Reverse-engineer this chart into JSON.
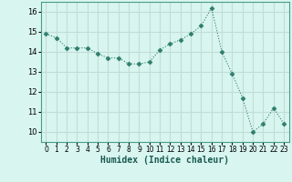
{
  "x": [
    0,
    1,
    2,
    3,
    4,
    5,
    6,
    7,
    8,
    9,
    10,
    11,
    12,
    13,
    14,
    15,
    16,
    17,
    18,
    19,
    20,
    21,
    22,
    23
  ],
  "y": [
    14.9,
    14.7,
    14.2,
    14.2,
    14.2,
    13.9,
    13.7,
    13.7,
    13.4,
    13.4,
    13.5,
    14.1,
    14.4,
    14.6,
    14.9,
    15.3,
    16.2,
    14.0,
    12.9,
    11.7,
    10.0,
    10.4,
    11.2,
    10.4
  ],
  "line_color": "#2e7d6e",
  "marker": "D",
  "marker_size": 2.5,
  "bg_color": "#d8f5ef",
  "grid_color": "#c0ddd8",
  "xlabel": "Humidex (Indice chaleur)",
  "xlim": [
    -0.5,
    23.5
  ],
  "ylim": [
    9.5,
    16.5
  ],
  "yticks": [
    10,
    11,
    12,
    13,
    14,
    15,
    16
  ],
  "xticks": [
    0,
    1,
    2,
    3,
    4,
    5,
    6,
    7,
    8,
    9,
    10,
    11,
    12,
    13,
    14,
    15,
    16,
    17,
    18,
    19,
    20,
    21,
    22,
    23
  ]
}
